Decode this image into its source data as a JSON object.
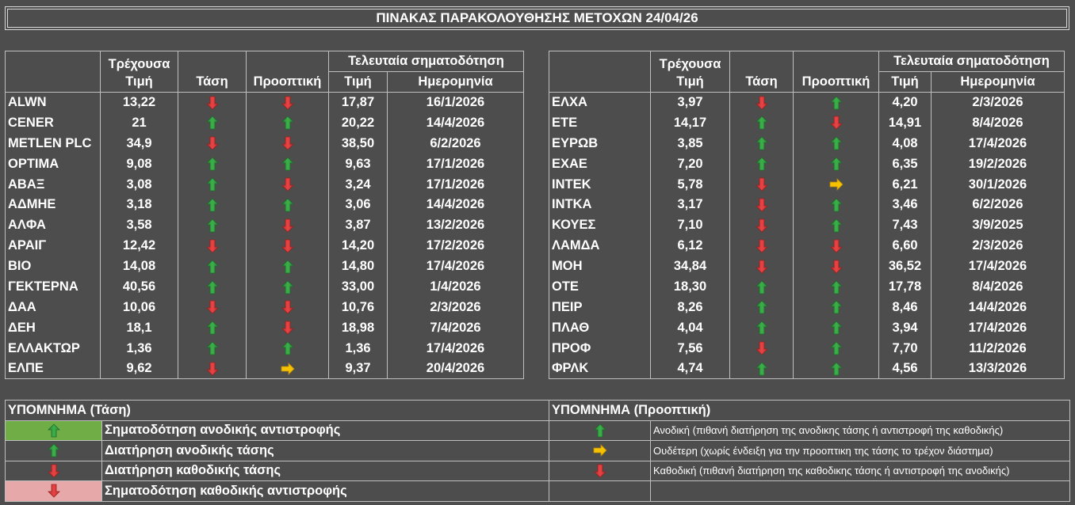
{
  "title": "ΠΙΝΑΚΑΣ ΠΑΡΑΚΟΛΟΥΘΗΣΗΣ ΜΕΤΟΧΩΝ 24/04/26",
  "headers": {
    "current_line1": "Τρέχουσα",
    "current_line2": "Τιμή",
    "trend": "Τάση",
    "outlook": "Προοπτική",
    "last_signal": "Τελευταία σηματοδότηση",
    "price": "Τιμή",
    "date": "Ημερομηνία"
  },
  "arrow_icons": {
    "up": "green-up-arrow-icon",
    "down": "red-down-arrow-icon",
    "right": "yellow-right-arrow-icon"
  },
  "colors": {
    "background": "#4d4d4d",
    "up_arrow": "#3cb04a",
    "down_arrow": "#e84545",
    "neutral_arrow": "#f5c200",
    "legend_green": "#70ad47",
    "legend_pink": "#e6a8a8"
  },
  "left_rows": [
    {
      "name": "ALWN",
      "price": "13,22",
      "trend": "down",
      "outlook": "down",
      "sig_price": "17,87",
      "sig_date": "16/1/2026"
    },
    {
      "name": "CENER",
      "price": "21",
      "trend": "up",
      "outlook": "up",
      "sig_price": "20,22",
      "sig_date": "14/4/2026"
    },
    {
      "name": "METLEN PLC",
      "price": "34,9",
      "trend": "down",
      "outlook": "down",
      "sig_price": "38,50",
      "sig_date": "6/2/2026"
    },
    {
      "name": "ΟΡΤΙΜΑ",
      "price": "9,08",
      "trend": "up",
      "outlook": "up",
      "sig_price": "9,63",
      "sig_date": "17/1/2026"
    },
    {
      "name": "ΑΒΑΞ",
      "price": "3,08",
      "trend": "up",
      "outlook": "down",
      "sig_price": "3,24",
      "sig_date": "17/1/2026"
    },
    {
      "name": "ΑΔΜΗΕ",
      "price": "3,18",
      "trend": "up",
      "outlook": "up",
      "sig_price": "3,06",
      "sig_date": "14/4/2026"
    },
    {
      "name": "ΑΛΦΑ",
      "price": "3,58",
      "trend": "up",
      "outlook": "down",
      "sig_price": "3,87",
      "sig_date": "13/2/2026"
    },
    {
      "name": "ΑΡΑΙΓ",
      "price": "12,42",
      "trend": "down",
      "outlook": "down",
      "sig_price": "14,20",
      "sig_date": "17/2/2026"
    },
    {
      "name": "ΒΙΟ",
      "price": "14,08",
      "trend": "up",
      "outlook": "up",
      "sig_price": "14,80",
      "sig_date": "17/4/2026"
    },
    {
      "name": "ΓΕΚΤΕΡΝΑ",
      "price": "40,56",
      "trend": "up",
      "outlook": "up",
      "sig_price": "33,00",
      "sig_date": "1/4/2026"
    },
    {
      "name": "ΔΑΑ",
      "price": "10,06",
      "trend": "down",
      "outlook": "down",
      "sig_price": "10,76",
      "sig_date": "2/3/2026"
    },
    {
      "name": "ΔΕΗ",
      "price": "18,1",
      "trend": "up",
      "outlook": "down",
      "sig_price": "18,98",
      "sig_date": "7/4/2026"
    },
    {
      "name": "ΕΛΛΑΚΤΩΡ",
      "price": "1,36",
      "trend": "up",
      "outlook": "up",
      "sig_price": "1,36",
      "sig_date": "17/4/2026"
    },
    {
      "name": "ΕΛΠΕ",
      "price": "9,62",
      "trend": "down",
      "outlook": "right",
      "sig_price": "9,37",
      "sig_date": "20/4/2026"
    }
  ],
  "right_rows": [
    {
      "name": "ΕΛΧΑ",
      "price": "3,97",
      "trend": "down",
      "outlook": "up",
      "sig_price": "4,20",
      "sig_date": "2/3/2026"
    },
    {
      "name": "ΕΤΕ",
      "price": "14,17",
      "trend": "up",
      "outlook": "down",
      "sig_price": "14,91",
      "sig_date": "8/4/2026"
    },
    {
      "name": "ΕΥΡΩΒ",
      "price": "3,85",
      "trend": "up",
      "outlook": "up",
      "sig_price": "4,08",
      "sig_date": "17/4/2026"
    },
    {
      "name": "ΕΧΑΕ",
      "price": "7,20",
      "trend": "up",
      "outlook": "up",
      "sig_price": "6,35",
      "sig_date": "19/2/2026"
    },
    {
      "name": "ΙΝΤΕΚ",
      "price": "5,78",
      "trend": "down",
      "outlook": "right",
      "sig_price": "6,21",
      "sig_date": "30/1/2026"
    },
    {
      "name": "ΙΝΤΚΑ",
      "price": "3,17",
      "trend": "down",
      "outlook": "up",
      "sig_price": "3,46",
      "sig_date": "6/2/2026"
    },
    {
      "name": "ΚΟΥΕΣ",
      "price": "7,10",
      "trend": "down",
      "outlook": "up",
      "sig_price": "7,43",
      "sig_date": "3/9/2025"
    },
    {
      "name": "ΛΑΜΔΑ",
      "price": "6,12",
      "trend": "down",
      "outlook": "down",
      "sig_price": "6,60",
      "sig_date": "2/3/2026"
    },
    {
      "name": "ΜΟΗ",
      "price": "34,84",
      "trend": "down",
      "outlook": "down",
      "sig_price": "36,52",
      "sig_date": "17/4/2026"
    },
    {
      "name": "ΟΤΕ",
      "price": "18,30",
      "trend": "up",
      "outlook": "up",
      "sig_price": "17,78",
      "sig_date": "8/4/2026"
    },
    {
      "name": "ΠΕΙΡ",
      "price": "8,26",
      "trend": "up",
      "outlook": "up",
      "sig_price": "8,46",
      "sig_date": "14/4/2026"
    },
    {
      "name": "ΠΛΑΘ",
      "price": "4,04",
      "trend": "up",
      "outlook": "up",
      "sig_price": "3,94",
      "sig_date": "17/4/2026"
    },
    {
      "name": "ΠΡΟΦ",
      "price": "7,56",
      "trend": "down",
      "outlook": "up",
      "sig_price": "7,70",
      "sig_date": "11/2/2026"
    },
    {
      "name": "ΦΡΛΚ",
      "price": "4,74",
      "trend": "up",
      "outlook": "up",
      "sig_price": "4,56",
      "sig_date": "13/3/2026"
    }
  ],
  "legend": {
    "trend_title": "ΥΠΟΜΝΗΜΑ (Τάση)",
    "outlook_title": "ΥΠΟΜΝΗΜΑ (Προοπτική)",
    "trend_items": [
      "Σηματοδότηση ανοδικής αντιστροφής",
      "Διατήρηση ανοδικής τάσης",
      "Διατήρηση καθοδικής τάσης",
      "Σηματοδότηση καθοδικής αντιστροφής"
    ],
    "outlook_items": [
      "Ανοδική (πιθανή διατήρηση της ανοδικης τάσης ή αντιστροφή της καθοδικής)",
      "Ουδέτερη (χωρίς ένδειξη για την προοπτικη της τάσης το τρέχον διάστημα)",
      "Καθοδική (πιθανή διατήρηση της καθοδικης τάσης ή αντιστροφή της ανοδικής)"
    ]
  }
}
